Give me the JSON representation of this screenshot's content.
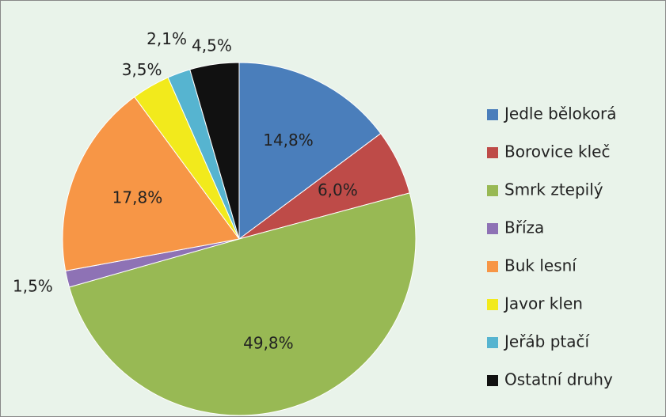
{
  "chart_data": {
    "type": "pie",
    "categories": [
      "Jedle bělokorá",
      "Borovice kleč",
      "Smrk ztepilý",
      "Bříza",
      "Buk lesní",
      "Javor klen",
      "Jeřáb ptačí",
      "Ostatní druhy"
    ],
    "values": [
      14.8,
      6.0,
      49.8,
      1.5,
      17.8,
      3.5,
      2.1,
      4.5
    ],
    "value_labels": [
      "14,8%",
      "6,0%",
      "49,8%",
      "1,5%",
      "17,8%",
      "3,5%",
      "2,1%",
      "4,5%"
    ],
    "colors": [
      "#4a7ebb",
      "#be4b48",
      "#98b954",
      "#8e72b5",
      "#f79646",
      "#f2ea1c",
      "#56b4d0",
      "#111111"
    ],
    "legend": "right"
  }
}
